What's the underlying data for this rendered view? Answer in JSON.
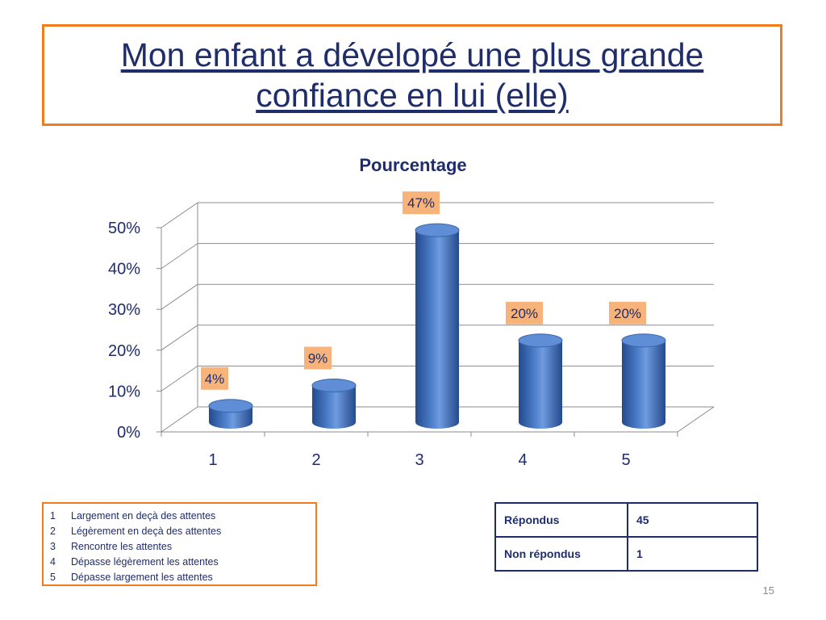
{
  "title": "Mon enfant a dévelopé une plus grande confiance en lui (elle)",
  "chart_data": {
    "type": "bar",
    "title": "Pourcentage",
    "categories": [
      "1",
      "2",
      "3",
      "4",
      "5"
    ],
    "values": [
      4,
      9,
      47,
      20,
      20
    ],
    "value_labels": [
      "4%",
      "9%",
      "47%",
      "20%",
      "20%"
    ],
    "y_ticks": [
      "0%",
      "10%",
      "20%",
      "30%",
      "40%",
      "50%"
    ],
    "ylim": [
      0,
      50
    ],
    "grid": true,
    "style": "3d-cylinder",
    "colors": {
      "bar": "#4a7cc7",
      "bar_dark": "#244a8c",
      "label_bg": "#f8b37a",
      "grid": "#8c8c8c"
    }
  },
  "legend": [
    {
      "num": "1",
      "text": "Largement en deçà des attentes"
    },
    {
      "num": "2",
      "text": "Légèrement en deçà des attentes"
    },
    {
      "num": "3",
      "text": "Rencontre les attentes"
    },
    {
      "num": "4",
      "text": "Dépasse légèrement les attentes"
    },
    {
      "num": "5",
      "text": "Dépasse largement les attentes"
    }
  ],
  "stats": [
    {
      "label": "Répondus",
      "value": "45"
    },
    {
      "label": "Non répondus",
      "value": "1"
    }
  ],
  "page_number": "15",
  "colors": {
    "accent_border": "#f07c1e",
    "text": "#1f2d6b"
  }
}
